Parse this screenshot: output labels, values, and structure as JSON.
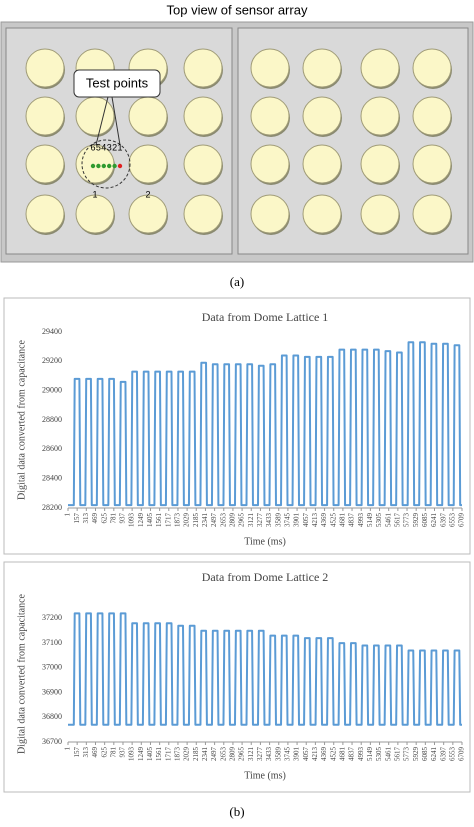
{
  "diagram": {
    "title": "Top view of  sensor array",
    "callout": "Test points",
    "point_labels": [
      "6",
      "5",
      "4",
      "3",
      "2",
      "1"
    ],
    "dome_labels": [
      "1",
      "2"
    ],
    "caption": "(a)"
  },
  "caption": "(b)",
  "chart_data": [
    {
      "type": "line",
      "title": "Data from Dome Lattice 1",
      "x_label": "Time (ms)",
      "y_label": "Digital data converted from capacitance",
      "xlim": [
        1,
        6709
      ],
      "ylim": [
        28200,
        29400
      ],
      "yticks": [
        28200,
        28400,
        28600,
        28800,
        29000,
        29200,
        29400
      ],
      "grid": false,
      "xticks": [
        1,
        157,
        313,
        469,
        625,
        781,
        937,
        1093,
        1249,
        1405,
        1561,
        1717,
        1873,
        2029,
        2185,
        2341,
        2497,
        2653,
        2809,
        2965,
        3121,
        3277,
        3433,
        3589,
        3745,
        3901,
        4057,
        4213,
        4369,
        4525,
        4681,
        4837,
        4993,
        5149,
        5305,
        5461,
        5617,
        5773,
        5929,
        6085,
        6241,
        6397,
        6553,
        6709
      ],
      "x": [
        1,
        100,
        115,
        195,
        210,
        296,
        311,
        391,
        406,
        492,
        507,
        587,
        602,
        688,
        703,
        783,
        798,
        884,
        899,
        979,
        994,
        1080,
        1095,
        1175,
        1190,
        1276,
        1291,
        1371,
        1386,
        1472,
        1487,
        1567,
        1582,
        1668,
        1683,
        1763,
        1778,
        1864,
        1879,
        1959,
        1974,
        2060,
        2075,
        2155,
        2170,
        2256,
        2271,
        2351,
        2366,
        2452,
        2467,
        2547,
        2562,
        2648,
        2663,
        2743,
        2758,
        2844,
        2859,
        2939,
        2954,
        3040,
        3055,
        3135,
        3150,
        3236,
        3251,
        3331,
        3346,
        3432,
        3447,
        3527,
        3542,
        3628,
        3643,
        3723,
        3738,
        3824,
        3839,
        3919,
        3934,
        4020,
        4035,
        4115,
        4130,
        4216,
        4231,
        4311,
        4326,
        4412,
        4427,
        4507,
        4522,
        4608,
        4623,
        4703,
        4718,
        4804,
        4819,
        4899,
        4914,
        5000,
        5015,
        5095,
        5110,
        5196,
        5211,
        5291,
        5306,
        5392,
        5407,
        5487,
        5502,
        5588,
        5603,
        5683,
        5698,
        5784,
        5799,
        5879,
        5894,
        5980,
        5995,
        6075,
        6090,
        6176,
        6191,
        6271,
        6286,
        6372,
        6387,
        6467,
        6482,
        6568,
        6583,
        6663,
        6678,
        6709
      ],
      "series": [
        {
          "color": "#5b9bd5",
          "values": [
            28220,
            28220,
            29080,
            29080,
            28220,
            28220,
            29080,
            29080,
            28220,
            28220,
            29080,
            29080,
            28220,
            28220,
            29080,
            29080,
            28220,
            28220,
            29060,
            29060,
            28220,
            28220,
            29130,
            29130,
            28220,
            28220,
            29130,
            29130,
            28220,
            28220,
            29130,
            29130,
            28220,
            28220,
            29130,
            29130,
            28220,
            28220,
            29130,
            29130,
            28220,
            28220,
            29130,
            29130,
            28220,
            28220,
            29190,
            29190,
            28220,
            28220,
            29180,
            29180,
            28220,
            28220,
            29180,
            29180,
            28220,
            28220,
            29180,
            29180,
            28220,
            28220,
            29180,
            29180,
            28220,
            28220,
            29170,
            29170,
            28220,
            28220,
            29180,
            29180,
            28220,
            28220,
            29240,
            29240,
            28220,
            28220,
            29240,
            29240,
            28220,
            28220,
            29230,
            29230,
            28220,
            28220,
            29230,
            29230,
            28220,
            28220,
            29230,
            29230,
            28220,
            28220,
            29280,
            29280,
            28220,
            28220,
            29280,
            29280,
            28220,
            28220,
            29280,
            29280,
            28220,
            28220,
            29280,
            29280,
            28220,
            28220,
            29270,
            29270,
            28220,
            28220,
            29260,
            29260,
            28220,
            28220,
            29330,
            29330,
            28220,
            28220,
            29330,
            29330,
            28220,
            28220,
            29320,
            29320,
            28220,
            28220,
            29320,
            29320,
            28220,
            28220,
            29310,
            29310,
            28220,
            28220
          ]
        }
      ]
    },
    {
      "type": "line",
      "title": "Data from Dome Lattice 2",
      "x_label": "Time (ms)",
      "y_label": "Digital data converted from capacitance",
      "xlim": [
        1,
        6709
      ],
      "ylim": [
        36700,
        37250
      ],
      "yticks": [
        36700,
        36800,
        36900,
        37000,
        37100,
        37200
      ],
      "grid": false,
      "xticks": [
        1,
        157,
        313,
        469,
        625,
        781,
        937,
        1093,
        1249,
        1405,
        1561,
        1717,
        1873,
        2029,
        2185,
        2341,
        2497,
        2653,
        2809,
        2965,
        3121,
        3277,
        3433,
        3589,
        3745,
        3901,
        4057,
        4213,
        4369,
        4525,
        4681,
        4837,
        4993,
        5149,
        5305,
        5461,
        5617,
        5773,
        5929,
        6085,
        6241,
        6397,
        6553,
        6709
      ],
      "x": [
        1,
        100,
        115,
        195,
        210,
        296,
        311,
        391,
        406,
        492,
        507,
        587,
        602,
        688,
        703,
        783,
        798,
        884,
        899,
        979,
        994,
        1080,
        1095,
        1175,
        1190,
        1276,
        1291,
        1371,
        1386,
        1472,
        1487,
        1567,
        1582,
        1668,
        1683,
        1763,
        1778,
        1864,
        1879,
        1959,
        1974,
        2060,
        2075,
        2155,
        2170,
        2256,
        2271,
        2351,
        2366,
        2452,
        2467,
        2547,
        2562,
        2648,
        2663,
        2743,
        2758,
        2844,
        2859,
        2939,
        2954,
        3040,
        3055,
        3135,
        3150,
        3236,
        3251,
        3331,
        3346,
        3432,
        3447,
        3527,
        3542,
        3628,
        3643,
        3723,
        3738,
        3824,
        3839,
        3919,
        3934,
        4020,
        4035,
        4115,
        4130,
        4216,
        4231,
        4311,
        4326,
        4412,
        4427,
        4507,
        4522,
        4608,
        4623,
        4703,
        4718,
        4804,
        4819,
        4899,
        4914,
        5000,
        5015,
        5095,
        5110,
        5196,
        5211,
        5291,
        5306,
        5392,
        5407,
        5487,
        5502,
        5588,
        5603,
        5683,
        5698,
        5784,
        5799,
        5879,
        5894,
        5980,
        5995,
        6075,
        6090,
        6176,
        6191,
        6271,
        6286,
        6372,
        6387,
        6467,
        6482,
        6568,
        6583,
        6663,
        6678,
        6709
      ],
      "series": [
        {
          "color": "#5b9bd5",
          "values": [
            36770,
            36770,
            37220,
            37220,
            36770,
            36770,
            37220,
            37220,
            36770,
            36770,
            37220,
            37220,
            36770,
            36770,
            37220,
            37220,
            36770,
            36770,
            37220,
            37220,
            36770,
            36770,
            37180,
            37180,
            36770,
            36770,
            37180,
            37180,
            36770,
            36770,
            37180,
            37180,
            36770,
            36770,
            37180,
            37180,
            36770,
            36770,
            37170,
            37170,
            36770,
            36770,
            37170,
            37170,
            36770,
            36770,
            37150,
            37150,
            36770,
            36770,
            37150,
            37150,
            36770,
            36770,
            37150,
            37150,
            36770,
            36770,
            37150,
            37150,
            36770,
            36770,
            37150,
            37150,
            36770,
            36770,
            37150,
            37150,
            36770,
            36770,
            37130,
            37130,
            36770,
            36770,
            37130,
            37130,
            36770,
            36770,
            37130,
            37130,
            36770,
            36770,
            37120,
            37120,
            36770,
            36770,
            37120,
            37120,
            36770,
            36770,
            37120,
            37120,
            36770,
            36770,
            37100,
            37100,
            36770,
            36770,
            37100,
            37100,
            36770,
            36770,
            37090,
            37090,
            36770,
            36770,
            37090,
            37090,
            36770,
            36770,
            37090,
            37090,
            36770,
            36770,
            37090,
            37090,
            36770,
            36770,
            37070,
            37070,
            36770,
            36770,
            37070,
            37070,
            36770,
            36770,
            37070,
            37070,
            36770,
            36770,
            37070,
            37070,
            36770,
            36770,
            37070,
            37070,
            36770,
            36770
          ]
        }
      ]
    }
  ]
}
